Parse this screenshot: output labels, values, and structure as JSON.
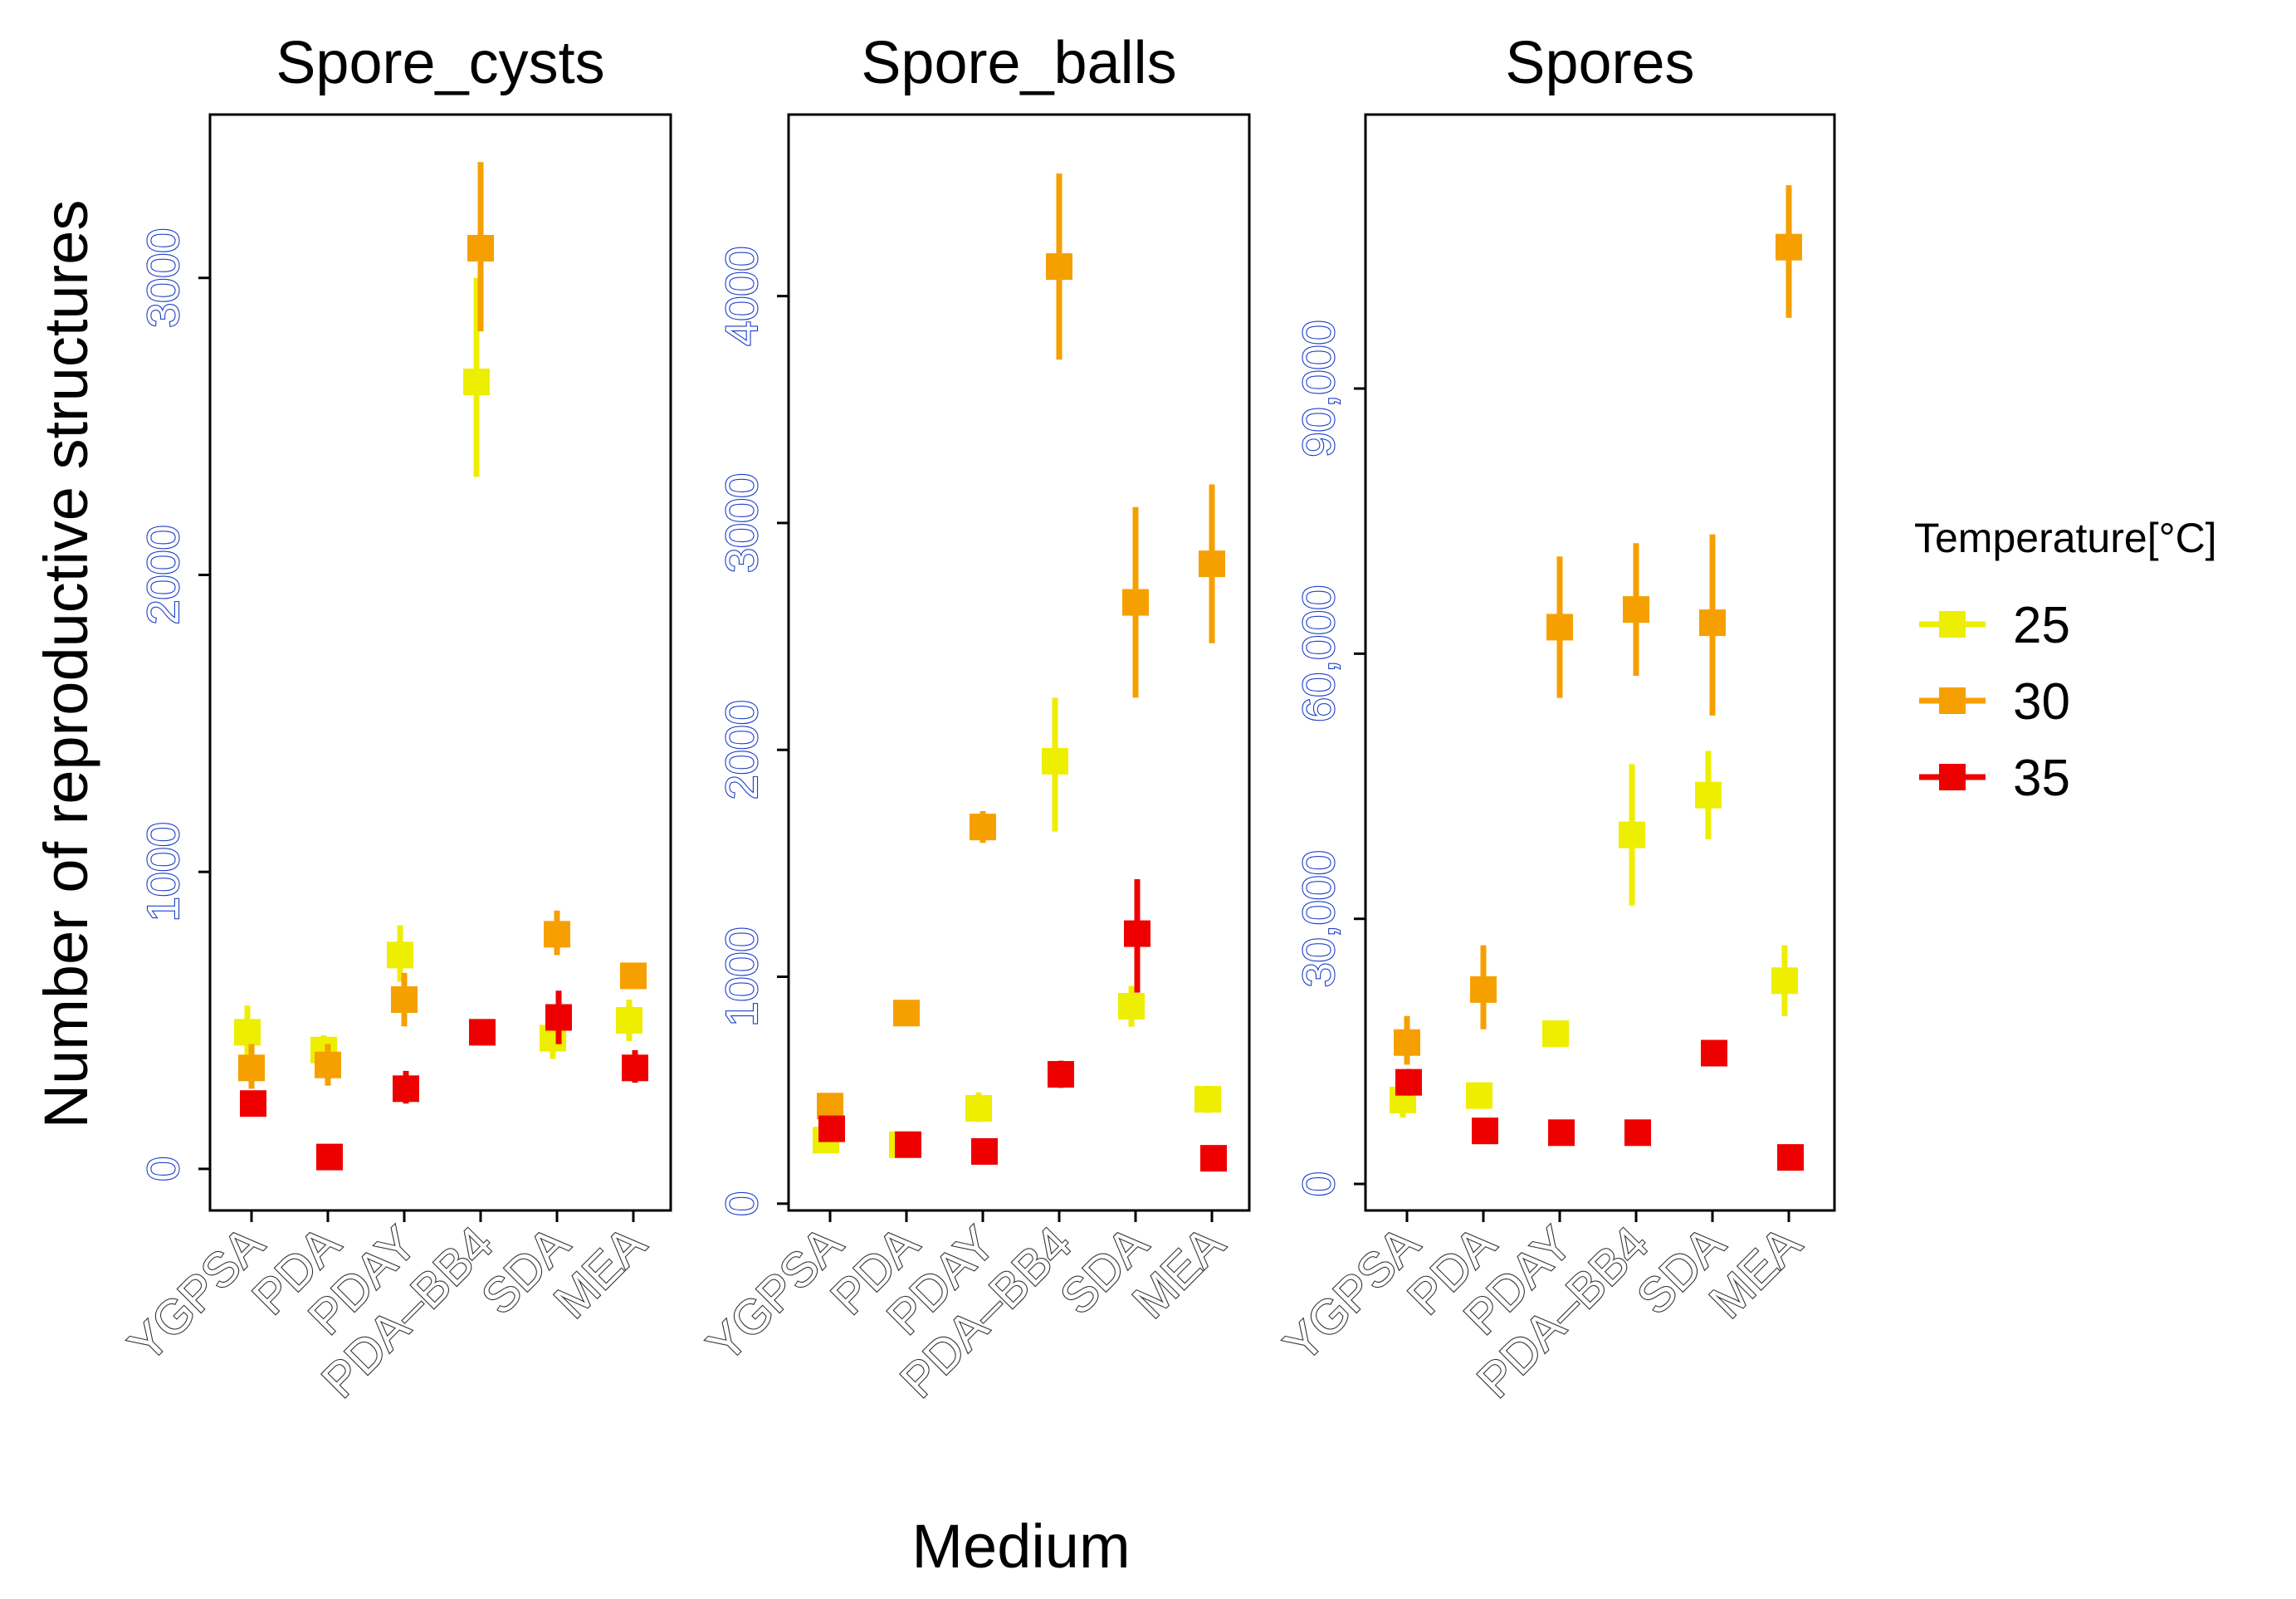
{
  "figure": {
    "y_axis_title": "Number of reproductive structures",
    "x_axis_title": "Medium",
    "legend": {
      "title": "Temperature[°C]",
      "entries": [
        {
          "label": "25",
          "color": "#EEEE00"
        },
        {
          "label": "30",
          "color": "#F5A000"
        },
        {
          "label": "35",
          "color": "#EE0000"
        }
      ]
    }
  },
  "chart_data": [
    {
      "type": "scatter",
      "title": "Spore_cysts",
      "xlabel": "Medium",
      "ylabel": "Number of reproductive structures",
      "categories": [
        "YGPSA",
        "PDA",
        "PDAY",
        "PDA–BB4",
        "SDA",
        "MEA"
      ],
      "ylim": [
        -140,
        3550
      ],
      "yticks": [
        0,
        1000,
        2000,
        3000
      ],
      "ytick_labels": [
        "0",
        "1000",
        "2000",
        "3000"
      ],
      "series": [
        {
          "name": "25",
          "color": "#EEEE00",
          "values": [
            460,
            400,
            720,
            2650,
            440,
            500
          ],
          "lower": [
            380,
            330,
            630,
            2330,
            370,
            430
          ],
          "upper": [
            550,
            450,
            820,
            3000,
            510,
            570
          ]
        },
        {
          "name": "30",
          "color": "#F5A000",
          "values": [
            340,
            350,
            570,
            3100,
            790,
            650
          ],
          "lower": [
            270,
            280,
            480,
            2820,
            720,
            610
          ],
          "upper": [
            420,
            420,
            660,
            3390,
            870,
            690
          ]
        },
        {
          "name": "35",
          "color": "#EE0000",
          "values": [
            220,
            40,
            270,
            460,
            510,
            340
          ],
          "lower": [
            190,
            20,
            220,
            420,
            420,
            290
          ],
          "upper": [
            260,
            60,
            330,
            500,
            600,
            400
          ]
        }
      ]
    },
    {
      "type": "scatter",
      "title": "Spore_balls",
      "xlabel": "Medium",
      "ylabel": "Number of reproductive structures",
      "categories": [
        "YGPSA",
        "PDA",
        "PDAY",
        "PDA–BB4",
        "SDA",
        "MEA"
      ],
      "ylim": [
        -30,
        4800
      ],
      "yticks": [
        0,
        1000,
        2000,
        3000,
        4000
      ],
      "ytick_labels": [
        "0",
        "1000",
        "2000",
        "3000",
        "4000"
      ],
      "series": [
        {
          "name": "25",
          "color": "#EEEE00",
          "values": [
            280,
            260,
            420,
            1950,
            870,
            460
          ],
          "lower": [
            240,
            220,
            360,
            1640,
            780,
            400
          ],
          "upper": [
            320,
            300,
            490,
            2230,
            960,
            520
          ]
        },
        {
          "name": "30",
          "color": "#F5A000",
          "values": [
            430,
            840,
            1660,
            4130,
            2650,
            2820
          ],
          "lower": [
            390,
            800,
            1590,
            3720,
            2230,
            2470
          ],
          "upper": [
            470,
            880,
            1730,
            4540,
            3070,
            3170
          ]
        },
        {
          "name": "35",
          "color": "#EE0000",
          "values": [
            330,
            260,
            230,
            570,
            1190,
            200
          ],
          "lower": [
            290,
            220,
            200,
            510,
            930,
            170
          ],
          "upper": [
            370,
            300,
            270,
            630,
            1430,
            230
          ]
        }
      ]
    },
    {
      "type": "scatter",
      "title": "Spores",
      "xlabel": "Medium",
      "ylabel": "Number of reproductive structures",
      "categories": [
        "YGPSA",
        "PDA",
        "PDAY",
        "PDA–BB4",
        "SDA",
        "MEA"
      ],
      "ylim": [
        -3000,
        121000
      ],
      "yticks": [
        0,
        30000,
        60000,
        90000
      ],
      "ytick_labels": [
        "0",
        "30,000",
        "60,000",
        "90,000"
      ],
      "series": [
        {
          "name": "25",
          "color": "#EEEE00",
          "values": [
            9500,
            10000,
            17000,
            39500,
            44000,
            23000
          ],
          "lower": [
            7500,
            8500,
            15500,
            31500,
            39000,
            19000
          ],
          "upper": [
            11500,
            11500,
            18500,
            47500,
            49000,
            27000
          ]
        },
        {
          "name": "30",
          "color": "#F5A000",
          "values": [
            16000,
            22000,
            63000,
            65000,
            63500,
            106000
          ],
          "lower": [
            13500,
            17500,
            55000,
            57500,
            53000,
            98000
          ],
          "upper": [
            19000,
            27000,
            71000,
            72500,
            73500,
            113000
          ]
        },
        {
          "name": "35",
          "color": "#EE0000",
          "values": [
            11500,
            6000,
            5800,
            5800,
            14800,
            3000
          ],
          "lower": [
            10000,
            5000,
            4800,
            4800,
            13800,
            2000
          ],
          "upper": [
            13000,
            7000,
            6800,
            6800,
            15800,
            4000
          ]
        }
      ]
    }
  ]
}
